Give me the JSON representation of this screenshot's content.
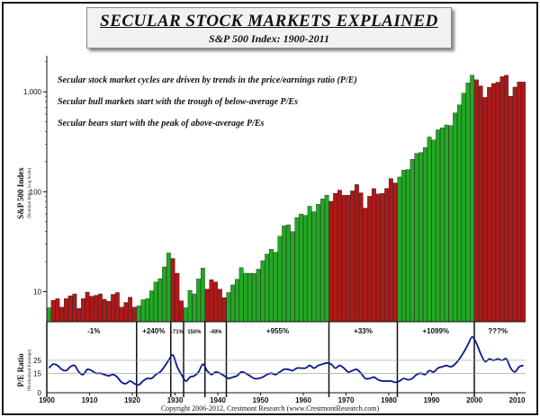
{
  "header": {
    "title": "SECULAR STOCK MARKETS EXPLAINED",
    "subtitle": "S&P 500 Index: 1900-2011"
  },
  "footer": "Copyright 2006-2012, Crestmont Research (www.CrestmontResearch.com)",
  "colors": {
    "bull": "#22aa22",
    "bear": "#b01818",
    "pe_line": "#0a1a8c",
    "frame": "#1a1a1a"
  },
  "chart_data": [
    {
      "type": "bar",
      "title": "S&P 500 Index",
      "ylabel": "S&P 500 Index",
      "ylabel_note": "(Nominal Index, Log Scale)",
      "yscale": "log",
      "ylim": [
        5,
        2300
      ],
      "y_ticks": [
        10,
        100,
        1000
      ],
      "y_tick_labels": [
        "10",
        "100",
        "1,000"
      ],
      "annotations": [
        "Secular stock market cycles are driven by trends in the price/earnings ratio (P/E)",
        "Secular bull markets start with the trough of below-average P/Es",
        "Secular bears start with the peak of above-average P/Es"
      ],
      "x": [
        1900,
        1901,
        1902,
        1903,
        1904,
        1905,
        1906,
        1907,
        1908,
        1909,
        1910,
        1911,
        1912,
        1913,
        1914,
        1915,
        1916,
        1917,
        1918,
        1919,
        1920,
        1921,
        1922,
        1923,
        1924,
        1925,
        1926,
        1927,
        1928,
        1929,
        1930,
        1931,
        1932,
        1933,
        1934,
        1935,
        1936,
        1937,
        1938,
        1939,
        1940,
        1941,
        1942,
        1943,
        1944,
        1945,
        1946,
        1947,
        1948,
        1949,
        1950,
        1951,
        1952,
        1953,
        1954,
        1955,
        1956,
        1957,
        1958,
        1959,
        1960,
        1961,
        1962,
        1963,
        1964,
        1965,
        1966,
        1967,
        1968,
        1969,
        1970,
        1971,
        1972,
        1973,
        1974,
        1975,
        1976,
        1977,
        1978,
        1979,
        1980,
        1981,
        1982,
        1983,
        1984,
        1985,
        1986,
        1987,
        1988,
        1989,
        1990,
        1991,
        1992,
        1993,
        1994,
        1995,
        1996,
        1997,
        1998,
        1999,
        2000,
        2001,
        2002,
        2003,
        2004,
        2005,
        2006,
        2007,
        2008,
        2009,
        2010,
        2011
      ],
      "values": [
        6.9,
        8.2,
        8.5,
        7.0,
        8.5,
        9.1,
        9.5,
        6.8,
        8.5,
        9.9,
        9.0,
        9.2,
        9.5,
        8.4,
        8.0,
        9.4,
        9.8,
        7.0,
        7.8,
        8.8,
        7.0,
        7.2,
        8.3,
        8.5,
        10.2,
        12.5,
        13.5,
        17.7,
        24.4,
        21.5,
        15.3,
        8.1,
        6.9,
        10.3,
        9.5,
        13.4,
        17.2,
        10.6,
        13.2,
        12.5,
        10.6,
        8.7,
        9.8,
        11.7,
        13.3,
        17.4,
        15.3,
        15.3,
        15.2,
        16.8,
        20.4,
        23.8,
        26.6,
        24.8,
        35.9,
        45.5,
        46.7,
        39.9,
        55.2,
        59.9,
        58.1,
        71.6,
        63.1,
        75.0,
        84.8,
        92.4,
        80.3,
        96.5,
        103.9,
        92.1,
        92.2,
        102.1,
        118.1,
        97.6,
        68.6,
        90.2,
        107.5,
        95.1,
        96.1,
        107.9,
        135.8,
        122.6,
        140.6,
        164.9,
        167.2,
        211.3,
        242.2,
        247.1,
        277.7,
        353.4,
        330.2,
        417.1,
        435.7,
        466.5,
        459.3,
        615.9,
        740.7,
        970.4,
        1229.2,
        1469.3,
        1320.3,
        1148.1,
        879.8,
        1111.9,
        1211.9,
        1248.3,
        1418.3,
        1468.4,
        903.3,
        1115.1,
        1257.6,
        1257.6
      ],
      "regimes": [
        {
          "start": 1901,
          "end": 1921,
          "type": "bear",
          "change": "-1%"
        },
        {
          "start": 1921,
          "end": 1929,
          "type": "bull",
          "change": "+240%"
        },
        {
          "start": 1929,
          "end": 1932,
          "type": "bear",
          "change": "-71%"
        },
        {
          "start": 1932,
          "end": 1937,
          "type": "bull",
          "change": "150%"
        },
        {
          "start": 1937,
          "end": 1942,
          "type": "bear",
          "change": "-49%"
        },
        {
          "start": 1942,
          "end": 1966,
          "type": "bull",
          "change": "+955%"
        },
        {
          "start": 1966,
          "end": 1982,
          "type": "bear",
          "change": "+33%"
        },
        {
          "start": 1982,
          "end": 2000,
          "type": "bull",
          "change": "+1099%"
        },
        {
          "start": 2000,
          "end": 2011,
          "type": "bear",
          "change": "???%"
        }
      ]
    },
    {
      "type": "line",
      "title": "P/E Ratio",
      "ylabel": "P/E Ratio",
      "ylabel_note": "(Normalized Earnings)",
      "ylim": [
        0,
        45
      ],
      "y_ticks": [
        0,
        15,
        25
      ],
      "y_tick_labels": [
        "0",
        "15",
        "25"
      ],
      "x_ticks": [
        1900,
        1910,
        1920,
        1930,
        1940,
        1950,
        1960,
        1970,
        1980,
        1990,
        2000,
        2010
      ],
      "x_tick_labels": [
        "1900",
        "1910",
        "1920",
        "1930",
        "1940",
        "1950",
        "1960",
        "1970",
        "1980",
        "1990",
        "2000",
        "2010"
      ],
      "x": [
        1900,
        1901,
        1902,
        1903,
        1904,
        1905,
        1906,
        1907,
        1908,
        1909,
        1910,
        1911,
        1912,
        1913,
        1914,
        1915,
        1916,
        1917,
        1918,
        1919,
        1920,
        1921,
        1922,
        1923,
        1924,
        1925,
        1926,
        1927,
        1928,
        1929,
        1930,
        1931,
        1932,
        1933,
        1934,
        1935,
        1936,
        1937,
        1938,
        1939,
        1940,
        1941,
        1942,
        1943,
        1944,
        1945,
        1946,
        1947,
        1948,
        1949,
        1950,
        1951,
        1952,
        1953,
        1954,
        1955,
        1956,
        1957,
        1958,
        1959,
        1960,
        1961,
        1962,
        1963,
        1964,
        1965,
        1966,
        1967,
        1968,
        1969,
        1970,
        1971,
        1972,
        1973,
        1974,
        1975,
        1976,
        1977,
        1978,
        1979,
        1980,
        1981,
        1982,
        1983,
        1984,
        1985,
        1986,
        1987,
        1988,
        1989,
        1990,
        1991,
        1992,
        1993,
        1994,
        1995,
        1996,
        1997,
        1998,
        1999,
        2000,
        2001,
        2002,
        2003,
        2004,
        2005,
        2006,
        2007,
        2008,
        2009,
        2010,
        2011
      ],
      "values": [
        19,
        22,
        21,
        18,
        17,
        20,
        21,
        16,
        14,
        18,
        17,
        15,
        15,
        14,
        13,
        14,
        12,
        8,
        7,
        9,
        7,
        6,
        9,
        11,
        11,
        14,
        16,
        20,
        25,
        29,
        20,
        14,
        9,
        12,
        13,
        16,
        22,
        17,
        14,
        16,
        15,
        13,
        11,
        12,
        13,
        16,
        15,
        13,
        11,
        11,
        12,
        14,
        15,
        14,
        16,
        18,
        18,
        17,
        19,
        19,
        19,
        21,
        19,
        21,
        22,
        23,
        22,
        19,
        21,
        19,
        16,
        17,
        18,
        15,
        11,
        11,
        12,
        10,
        9,
        9,
        9,
        8,
        9,
        11,
        10,
        11,
        14,
        15,
        14,
        17,
        16,
        19,
        20,
        21,
        20,
        22,
        26,
        31,
        37,
        43,
        38,
        30,
        24,
        26,
        25,
        26,
        25,
        26,
        19,
        16,
        20,
        21
      ]
    }
  ]
}
